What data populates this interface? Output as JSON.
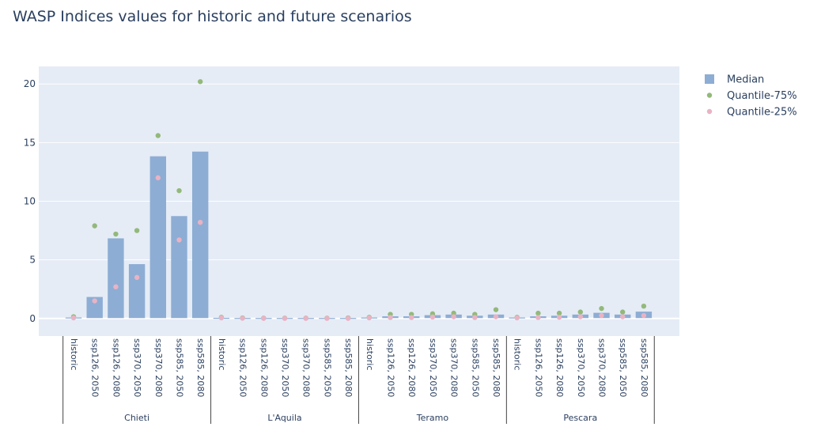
{
  "chart_data": {
    "type": "bar",
    "title": "WASP Indices values for historic and future scenarios",
    "xlabel": "",
    "ylabel": "",
    "ylim": [
      -1.5,
      21.5
    ],
    "yticks": [
      0,
      5,
      10,
      15,
      20
    ],
    "grid": true,
    "legend_position": "top-right",
    "colors": {
      "median": "#8dadd4",
      "q75": "#93b97a",
      "q25": "#e9b3c4",
      "plot_bg": "#e5ecf6",
      "grid": "#ffffff",
      "text": "#2a3f5f"
    },
    "categories": [
      "historic",
      "ssp126, 2050",
      "ssp126, 2080",
      "ssp370, 2050",
      "ssp370, 2080",
      "ssp585, 2050",
      "ssp585, 2080"
    ],
    "groups": [
      "Chieti",
      "L'Aquila",
      "Teramo",
      "Pescara"
    ],
    "series": [
      {
        "name": "Median",
        "marker": "bar",
        "values": [
          [
            0.05,
            1.8,
            6.8,
            4.6,
            13.8,
            8.7,
            14.2
          ],
          [
            0.02,
            0.01,
            0.01,
            0.01,
            0.01,
            0.01,
            0.01
          ],
          [
            0.05,
            0.15,
            0.15,
            0.25,
            0.3,
            0.2,
            0.3
          ],
          [
            0.05,
            0.15,
            0.2,
            0.3,
            0.45,
            0.3,
            0.55
          ]
        ]
      },
      {
        "name": "Quantile-75%",
        "marker": "dot",
        "values": [
          [
            0.15,
            7.9,
            7.2,
            7.5,
            15.6,
            10.9,
            20.2
          ],
          [
            0.1,
            0.05,
            0.03,
            0.03,
            0.03,
            0.03,
            0.05
          ],
          [
            0.1,
            0.35,
            0.35,
            0.4,
            0.45,
            0.35,
            0.75
          ],
          [
            0.1,
            0.45,
            0.45,
            0.55,
            0.85,
            0.55,
            1.05
          ]
        ]
      },
      {
        "name": "Quantile-25%",
        "marker": "dot",
        "values": [
          [
            0.05,
            1.5,
            2.7,
            3.5,
            12.0,
            6.7,
            8.2
          ],
          [
            0.05,
            0.02,
            0.01,
            0.01,
            0.01,
            0.01,
            0.01
          ],
          [
            0.05,
            0.08,
            0.08,
            0.12,
            0.15,
            0.08,
            0.15
          ],
          [
            0.05,
            0.08,
            0.1,
            0.15,
            0.25,
            0.15,
            0.25
          ]
        ]
      }
    ]
  }
}
